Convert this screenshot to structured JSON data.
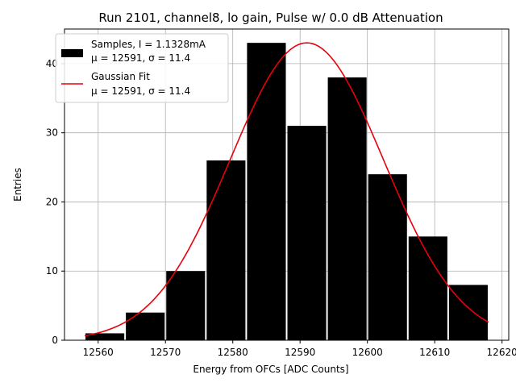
{
  "chart_data": {
    "type": "bar",
    "title": "Run 2101, channel8, lo gain, Pulse w/ 0.0 dB Attenuation",
    "xlabel": "Energy from OFCs [ADC Counts]",
    "ylabel": "Entries",
    "xlim": [
      12555,
      12621
    ],
    "ylim": [
      0,
      45
    ],
    "grid": true,
    "legend_position": "top-left",
    "bin_edges": [
      12558,
      12564,
      12570,
      12576,
      12582,
      12588,
      12594,
      12600,
      12606,
      12612,
      12618
    ],
    "values": [
      1,
      4,
      10,
      26,
      43,
      31,
      38,
      24,
      15,
      8
    ],
    "x_ticks": [
      12560,
      12570,
      12580,
      12590,
      12600,
      12610,
      12620
    ],
    "y_ticks": [
      0,
      10,
      20,
      30,
      40
    ],
    "fit": {
      "mu": 12591,
      "sigma": 11.4,
      "amplitude": 43,
      "x_range": [
        12558,
        12618
      ]
    },
    "legend": [
      {
        "line1": "Samples, I = 1.1328mA",
        "line2": "μ = 12591, σ = 11.4"
      },
      {
        "line1": "Gaussian Fit",
        "line2": "μ = 12591, σ = 11.4"
      }
    ],
    "colors": {
      "bars": "#000000",
      "fit": "#e8000b",
      "grid": "#b0b0b0"
    }
  }
}
